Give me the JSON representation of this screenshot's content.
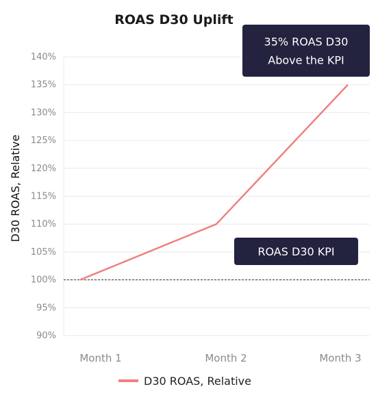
{
  "chart_data": {
    "type": "line",
    "title": "ROAS D30 Uplift",
    "xlabel": "",
    "ylabel": "D30 ROAS, Relative",
    "categories": [
      "Month 1",
      "Month 2",
      "Month 3"
    ],
    "series": [
      {
        "name": "D30 ROAS, Relative",
        "values": [
          100,
          110,
          135
        ],
        "color": "#f08080"
      }
    ],
    "ylim": [
      90,
      140
    ],
    "yticks": [
      "90%",
      "95%",
      "100%",
      "105%",
      "110%",
      "115%",
      "120%",
      "125%",
      "130%",
      "135%",
      "140%"
    ],
    "ytick_values": [
      90,
      95,
      100,
      105,
      110,
      115,
      120,
      125,
      130,
      135,
      140
    ],
    "grid": true,
    "legend_position": "bottom",
    "reference_line": {
      "value": 100,
      "style": "dashed",
      "color": "#333333"
    },
    "annotations": [
      {
        "lines": [
          "35% ROAS D30",
          "Above the KPI"
        ],
        "anchor": "top-right",
        "bg": "#23223f"
      },
      {
        "lines": [
          "ROAS D30 KPI"
        ],
        "anchor": "near-kpi-line",
        "bg": "#23223f"
      }
    ]
  }
}
